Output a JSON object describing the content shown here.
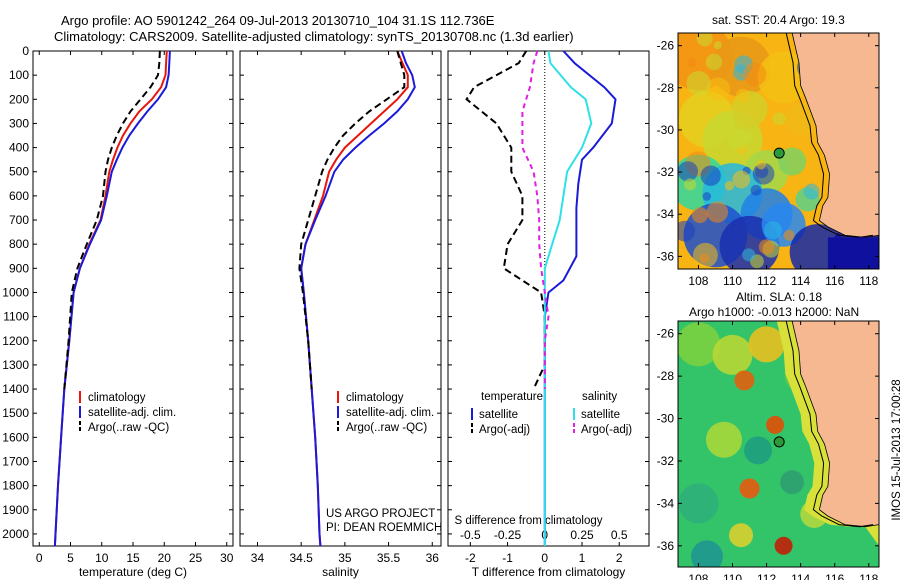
{
  "header": {
    "line1": "Argo profile: AO 5901242_264 09-Jul-2013 20130710_104 31.1S 112.736E",
    "line2": "Climatology: CARS2009. Satellite-adjusted climatology: synTS_20130708.nc (1.3d earlier)"
  },
  "map_top_title": "sat. SST: 20.4  Argo: 19.3",
  "map_bottom_title": [
    "Altim. SLA: 0.18",
    "Argo h1000: -0.013 h2000: NaN"
  ],
  "side_label": "IMOS 15-Jul-2013 17:00:28",
  "project_note": [
    "US ARGO PROJECT",
    "PI: DEAN ROEMMICH"
  ],
  "colors": {
    "climatology": "#e8160c",
    "satellite": "#1a1ad8",
    "argo": "#000000",
    "salinity_satellite": "#2ee0e8",
    "salinity_argo": "#e020e0",
    "land": "#f5b891",
    "argo_marker": "#2a9a3a"
  },
  "chart_data": [
    {
      "type": "line",
      "xlabel": "temperature (deg C)",
      "ylabel": "",
      "xlim": [
        -1,
        31
      ],
      "ylim": [
        2050,
        0
      ],
      "xticks": [
        0,
        5,
        10,
        15,
        20,
        25,
        30
      ],
      "yticks": [
        0,
        100,
        200,
        300,
        400,
        500,
        600,
        700,
        800,
        900,
        1000,
        1100,
        1200,
        1300,
        1400,
        1500,
        1600,
        1700,
        1800,
        1900,
        2000
      ],
      "legend": [
        "climatology",
        "satellite-adj. clim.",
        "Argo(..raw -QC)"
      ],
      "series": [
        {
          "name": "climatology",
          "color": "red",
          "dash": "",
          "points": [
            [
              20.4,
              0
            ],
            [
              20.3,
              50
            ],
            [
              20.2,
              100
            ],
            [
              19.5,
              150
            ],
            [
              18.0,
              200
            ],
            [
              16.0,
              250
            ],
            [
              14.6,
              300
            ],
            [
              13.4,
              350
            ],
            [
              12.5,
              400
            ],
            [
              11.8,
              450
            ],
            [
              11.2,
              500
            ],
            [
              10.6,
              600
            ],
            [
              9.8,
              700
            ],
            [
              8.0,
              800
            ],
            [
              6.5,
              900
            ],
            [
              5.5,
              1000
            ],
            [
              4.8,
              1200
            ],
            [
              4.0,
              1400
            ],
            [
              3.5,
              1600
            ],
            [
              3.0,
              1800
            ],
            [
              2.6,
              2000
            ],
            [
              2.5,
              2050
            ]
          ]
        },
        {
          "name": "satellite-adj. clim.",
          "color": "blue",
          "dash": "",
          "points": [
            [
              20.9,
              0
            ],
            [
              20.8,
              50
            ],
            [
              20.7,
              100
            ],
            [
              20.3,
              150
            ],
            [
              19.0,
              200
            ],
            [
              17.3,
              250
            ],
            [
              15.8,
              300
            ],
            [
              14.4,
              350
            ],
            [
              13.3,
              400
            ],
            [
              12.4,
              450
            ],
            [
              11.6,
              500
            ],
            [
              10.8,
              600
            ],
            [
              9.9,
              700
            ],
            [
              8.1,
              800
            ],
            [
              6.5,
              900
            ],
            [
              5.5,
              1000
            ],
            [
              4.8,
              1200
            ],
            [
              4.0,
              1400
            ],
            [
              3.5,
              1600
            ],
            [
              3.0,
              1800
            ],
            [
              2.6,
              2000
            ],
            [
              2.5,
              2050
            ]
          ]
        },
        {
          "name": "Argo(..raw -QC)",
          "color": "black",
          "dash": "7,4",
          "points": [
            [
              19.3,
              0
            ],
            [
              19.2,
              50
            ],
            [
              19.0,
              100
            ],
            [
              17.8,
              150
            ],
            [
              16.2,
              200
            ],
            [
              14.6,
              250
            ],
            [
              13.4,
              300
            ],
            [
              12.4,
              350
            ],
            [
              11.6,
              400
            ],
            [
              11.0,
              450
            ],
            [
              10.6,
              500
            ],
            [
              10.2,
              600
            ],
            [
              9.2,
              700
            ],
            [
              7.6,
              800
            ],
            [
              6.1,
              900
            ],
            [
              5.2,
              1000
            ],
            [
              4.7,
              1200
            ],
            [
              4.0,
              1400
            ]
          ]
        }
      ]
    },
    {
      "type": "line",
      "xlabel": "salinity",
      "ylabel": "",
      "xlim": [
        33.8,
        36.1
      ],
      "ylim": [
        2050,
        0
      ],
      "xticks": [
        34,
        34.5,
        35,
        35.5,
        36
      ],
      "legend": [
        "climatology",
        "satellite-adj. clim.",
        "Argo(..raw -QC)"
      ],
      "series": [
        {
          "name": "climatology",
          "color": "red",
          "dash": "",
          "points": [
            [
              35.6,
              0
            ],
            [
              35.66,
              50
            ],
            [
              35.72,
              100
            ],
            [
              35.72,
              150
            ],
            [
              35.6,
              200
            ],
            [
              35.45,
              250
            ],
            [
              35.3,
              300
            ],
            [
              35.15,
              350
            ],
            [
              35.0,
              400
            ],
            [
              34.9,
              450
            ],
            [
              34.82,
              500
            ],
            [
              34.75,
              600
            ],
            [
              34.65,
              700
            ],
            [
              34.55,
              800
            ],
            [
              34.5,
              900
            ],
            [
              34.53,
              1000
            ],
            [
              34.58,
              1200
            ],
            [
              34.62,
              1400
            ],
            [
              34.66,
              1600
            ],
            [
              34.69,
              1800
            ],
            [
              34.71,
              2000
            ],
            [
              34.72,
              2050
            ]
          ]
        },
        {
          "name": "satellite-adj. clim.",
          "color": "blue",
          "dash": "",
          "points": [
            [
              35.65,
              0
            ],
            [
              35.7,
              50
            ],
            [
              35.77,
              100
            ],
            [
              35.8,
              150
            ],
            [
              35.72,
              200
            ],
            [
              35.6,
              250
            ],
            [
              35.45,
              300
            ],
            [
              35.28,
              350
            ],
            [
              35.12,
              400
            ],
            [
              34.98,
              450
            ],
            [
              34.88,
              500
            ],
            [
              34.78,
              600
            ],
            [
              34.66,
              700
            ],
            [
              34.55,
              800
            ],
            [
              34.5,
              900
            ],
            [
              34.53,
              1000
            ],
            [
              34.58,
              1200
            ],
            [
              34.62,
              1400
            ],
            [
              34.66,
              1600
            ],
            [
              34.69,
              1800
            ],
            [
              34.71,
              2000
            ],
            [
              34.72,
              2050
            ]
          ]
        },
        {
          "name": "Argo(..raw -QC)",
          "color": "black",
          "dash": "7,4",
          "points": [
            [
              35.6,
              0
            ],
            [
              35.64,
              50
            ],
            [
              35.68,
              100
            ],
            [
              35.68,
              150
            ],
            [
              35.48,
              200
            ],
            [
              35.28,
              250
            ],
            [
              35.12,
              300
            ],
            [
              34.98,
              350
            ],
            [
              34.88,
              400
            ],
            [
              34.8,
              450
            ],
            [
              34.74,
              500
            ],
            [
              34.66,
              600
            ],
            [
              34.58,
              700
            ],
            [
              34.5,
              800
            ],
            [
              34.48,
              900
            ],
            [
              34.52,
              1000
            ],
            [
              34.58,
              1200
            ],
            [
              34.62,
              1400
            ]
          ]
        }
      ]
    },
    {
      "type": "line",
      "xlabel": "T difference from climatology",
      "xlabel_top": "S difference from climatology",
      "ylabel": "",
      "xlim": [
        -2.6,
        2.8
      ],
      "ylim": [
        2050,
        0
      ],
      "xticks": [
        -2,
        -1,
        0,
        1,
        2
      ],
      "xticks_top": [
        "-0.5",
        "-0.25",
        "0",
        "0.25",
        "0.5"
      ],
      "legend_left": {
        "heading": "temperature",
        "items": [
          "satellite",
          "Argo(-adj)"
        ]
      },
      "legend_right": {
        "heading": "salinity",
        "items": [
          "satellite",
          "Argo(-adj)"
        ]
      },
      "series": [
        {
          "name": "temperature satellite",
          "color": "blue",
          "dash": "",
          "points": [
            [
              0.5,
              0
            ],
            [
              0.8,
              50
            ],
            [
              1.6,
              150
            ],
            [
              1.9,
              200
            ],
            [
              1.8,
              300
            ],
            [
              1.3,
              400
            ],
            [
              1.0,
              450
            ],
            [
              0.9,
              550
            ],
            [
              0.85,
              650
            ],
            [
              0.85,
              750
            ],
            [
              0.85,
              850
            ],
            [
              0.5,
              950
            ],
            [
              0.1,
              1000
            ],
            [
              0.0,
              1100
            ],
            [
              0.0,
              1400
            ],
            [
              0.0,
              2050
            ]
          ]
        },
        {
          "name": "temperature Argo(-adj)",
          "color": "black",
          "dash": "7,4",
          "points": [
            [
              -0.5,
              0
            ],
            [
              -0.7,
              50
            ],
            [
              -1.9,
              150
            ],
            [
              -2.1,
              200
            ],
            [
              -1.3,
              300
            ],
            [
              -0.9,
              400
            ],
            [
              -0.9,
              500
            ],
            [
              -0.6,
              600
            ],
            [
              -0.6,
              700
            ],
            [
              -1.0,
              800
            ],
            [
              -1.1,
              900
            ],
            [
              -0.6,
              950
            ],
            [
              -0.1,
              1000
            ],
            [
              0.0,
              1100
            ],
            [
              0.0,
              1300
            ],
            [
              -0.3,
              1400
            ]
          ]
        },
        {
          "name": "salinity satellite",
          "color": "cyan",
          "dash": "",
          "points": [
            [
              0.1,
              0
            ],
            [
              0.15,
              50
            ],
            [
              0.7,
              150
            ],
            [
              1.1,
              200
            ],
            [
              1.25,
              300
            ],
            [
              1.0,
              400
            ],
            [
              0.6,
              500
            ],
            [
              0.5,
              600
            ],
            [
              0.4,
              700
            ],
            [
              0.2,
              800
            ],
            [
              0.0,
              900
            ],
            [
              0.0,
              1000
            ],
            [
              0.0,
              2050
            ]
          ]
        },
        {
          "name": "salinity Argo(-adj)",
          "color": "magenta",
          "dash": "5,4",
          "points": [
            [
              -0.2,
              0
            ],
            [
              -0.3,
              50
            ],
            [
              -0.4,
              150
            ],
            [
              -0.6,
              250
            ],
            [
              -0.6,
              400
            ],
            [
              -0.3,
              500
            ],
            [
              -0.2,
              600
            ],
            [
              -0.15,
              700
            ],
            [
              -0.15,
              800
            ],
            [
              -0.1,
              900
            ],
            [
              0.0,
              1000
            ],
            [
              0.1,
              1100
            ],
            [
              0.0,
              1200
            ],
            [
              0.0,
              1400
            ]
          ]
        }
      ]
    },
    {
      "type": "heatmap",
      "title": "sat. SST: 20.4  Argo: 19.3",
      "xlim": [
        106.8,
        118.6
      ],
      "ylim": [
        -36.6,
        -25.4
      ],
      "xticks": [
        108,
        110,
        112,
        114,
        116,
        118
      ],
      "yticks": [
        -26,
        -28,
        -30,
        -32,
        -34,
        -36
      ],
      "argo_position": [
        112.74,
        -31.1
      ]
    },
    {
      "type": "heatmap",
      "title": "Altim. SLA: 0.18  Argo h1000: -0.013 h2000: NaN",
      "xlim": [
        106.8,
        118.6
      ],
      "ylim": [
        -37.0,
        -25.4
      ],
      "xticks": [
        108,
        110,
        112,
        114,
        116,
        118
      ],
      "yticks": [
        -26,
        -28,
        -30,
        -32,
        -34,
        -36
      ],
      "argo_position": [
        112.74,
        -31.1
      ]
    }
  ]
}
